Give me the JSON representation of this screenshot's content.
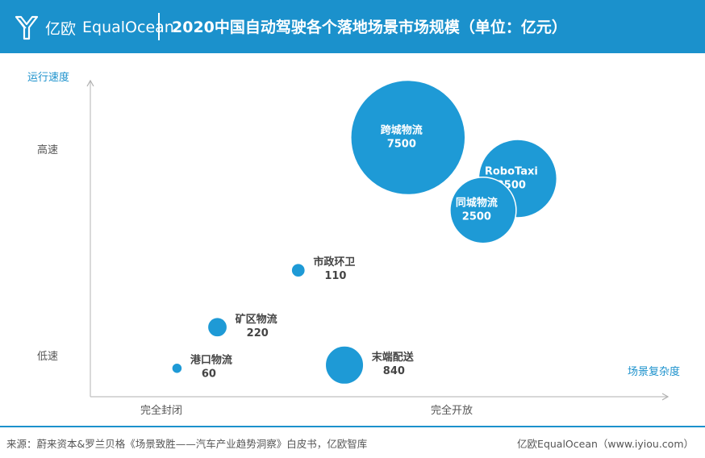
{
  "header": {
    "logo_cn": "亿欧",
    "logo_en": "EqualOcean",
    "title": "2020中国自动驾驶各个落地场景市场规模（单位：亿元）"
  },
  "colors": {
    "brand": "#1b91cc",
    "bubble": "#1e9ad6",
    "axis_label": "#1b91cc"
  },
  "chart_data": {
    "type": "scatter",
    "xlabel": "场景复杂度",
    "ylabel": "运行速度",
    "x_ticks": [
      "完全封闭",
      "完全开放"
    ],
    "y_ticks": [
      "高速",
      "低速"
    ],
    "grid": false,
    "points": [
      {
        "label": "跨城物流",
        "value": 7500,
        "x": 0.55,
        "y": 0.82
      },
      {
        "label": "RoboTaxi",
        "value": 3500,
        "x": 0.74,
        "y": 0.69
      },
      {
        "label": "同城物流",
        "value": 2500,
        "x": 0.68,
        "y": 0.59
      },
      {
        "label": "市政环卫",
        "value": 110,
        "x": 0.36,
        "y": 0.4
      },
      {
        "label": "矿区物流",
        "value": 220,
        "x": 0.22,
        "y": 0.22
      },
      {
        "label": "港口物流",
        "value": 60,
        "x": 0.15,
        "y": 0.09
      },
      {
        "label": "末端配送",
        "value": 840,
        "x": 0.44,
        "y": 0.1
      }
    ]
  },
  "footer": {
    "source": "来源：蔚来资本&罗兰贝格《场景致胜——汽车产业趋势洞察》白皮书，亿欧智库",
    "credit": "亿欧EqualOcean（www.iyiou.com）"
  }
}
